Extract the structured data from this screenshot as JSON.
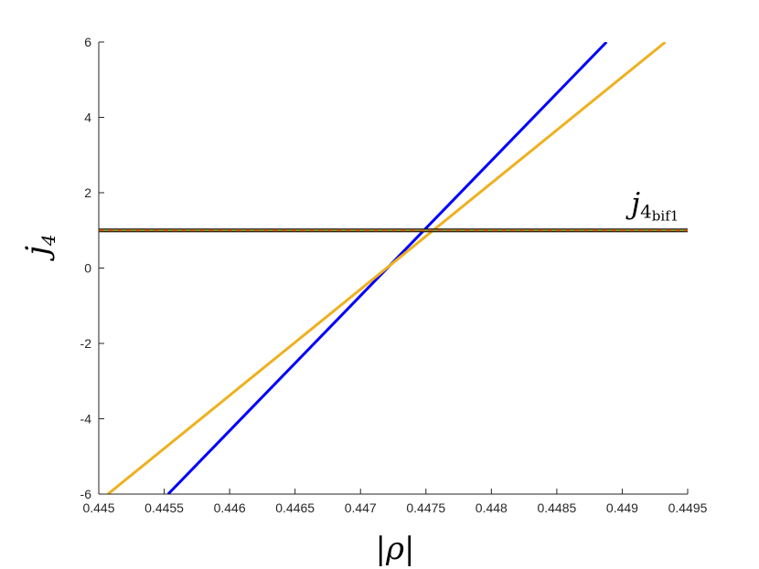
{
  "chart_data": {
    "type": "line",
    "xlabel": "|ρ|",
    "ylabel": "j",
    "ylabel_sub": "4",
    "xlim": [
      0.445,
      0.4495
    ],
    "ylim": [
      -6,
      6
    ],
    "xticks": [
      "0.445",
      "0.4455",
      "0.446",
      "0.4465",
      "0.447",
      "0.4475",
      "0.448",
      "0.4485",
      "0.449",
      "0.4495"
    ],
    "yticks": [
      "-6",
      "-4",
      "-2",
      "0",
      "2",
      "4",
      "6"
    ],
    "grid": false,
    "series": [
      {
        "color": "#0000ff",
        "style": "solid",
        "x": [
          0.44553,
          0.44888
        ],
        "y": [
          -6,
          6
        ]
      },
      {
        "color": "#edb120",
        "style": "solid",
        "x": [
          0.44507,
          0.44933
        ],
        "y": [
          -6,
          6
        ]
      },
      {
        "color": "#000000",
        "style": "solid",
        "x": [
          0.445,
          0.44975
        ],
        "y": [
          1,
          1
        ]
      },
      {
        "color": "#77ac30",
        "style": "solid",
        "x": [
          0.445,
          0.44975
        ],
        "y": [
          1,
          1
        ]
      },
      {
        "color": "#d95319",
        "style": "dashed",
        "x": [
          0.445,
          0.44975
        ],
        "y": [
          1,
          1
        ]
      },
      {
        "color": "#000000",
        "style": "dashed",
        "x": [
          0.44975,
          0.4495
        ],
        "y": [
          1,
          1
        ]
      }
    ],
    "annotations": [
      {
        "text": "j",
        "sub": "4",
        "subsub": "bif1",
        "x": 0.44925,
        "y": 1.45
      }
    ]
  }
}
